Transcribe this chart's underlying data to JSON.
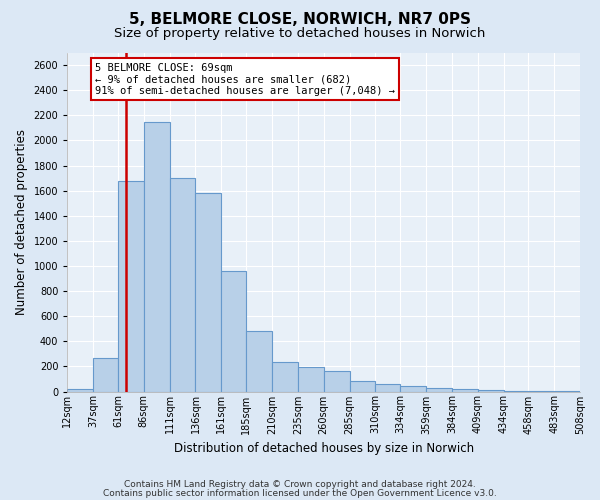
{
  "title1": "5, BELMORE CLOSE, NORWICH, NR7 0PS",
  "title2": "Size of property relative to detached houses in Norwich",
  "xlabel": "Distribution of detached houses by size in Norwich",
  "ylabel": "Number of detached properties",
  "bar_edges": [
    12,
    37,
    61,
    86,
    111,
    136,
    161,
    185,
    210,
    235,
    260,
    285,
    310,
    334,
    359,
    384,
    409,
    434,
    458,
    483,
    508
  ],
  "bar_heights": [
    18,
    270,
    1680,
    2150,
    1700,
    1580,
    960,
    480,
    235,
    195,
    160,
    80,
    58,
    45,
    28,
    18,
    10,
    5,
    3,
    5
  ],
  "bar_color": "#b8d0e8",
  "bar_edgecolor": "#6699cc",
  "bar_linewidth": 0.8,
  "red_line_x": 69,
  "ylim": [
    0,
    2700
  ],
  "yticks": [
    0,
    200,
    400,
    600,
    800,
    1000,
    1200,
    1400,
    1600,
    1800,
    2000,
    2200,
    2400,
    2600
  ],
  "xtick_labels": [
    "12sqm",
    "37sqm",
    "61sqm",
    "86sqm",
    "111sqm",
    "136sqm",
    "161sqm",
    "185sqm",
    "210sqm",
    "235sqm",
    "260sqm",
    "285sqm",
    "310sqm",
    "334sqm",
    "359sqm",
    "384sqm",
    "409sqm",
    "434sqm",
    "458sqm",
    "483sqm",
    "508sqm"
  ],
  "annotation_text": "5 BELMORE CLOSE: 69sqm\n← 9% of detached houses are smaller (682)\n91% of semi-detached houses are larger (7,048) →",
  "annotation_box_facecolor": "#ffffff",
  "annotation_box_edgecolor": "#cc0000",
  "footer1": "Contains HM Land Registry data © Crown copyright and database right 2024.",
  "footer2": "Contains public sector information licensed under the Open Government Licence v3.0.",
  "bg_color": "#dce8f5",
  "plot_bg_color": "#e8f0f8",
  "grid_color": "#ffffff",
  "title1_fontsize": 11,
  "title2_fontsize": 9.5,
  "axis_label_fontsize": 8.5,
  "tick_label_fontsize": 7,
  "footer_fontsize": 6.5
}
